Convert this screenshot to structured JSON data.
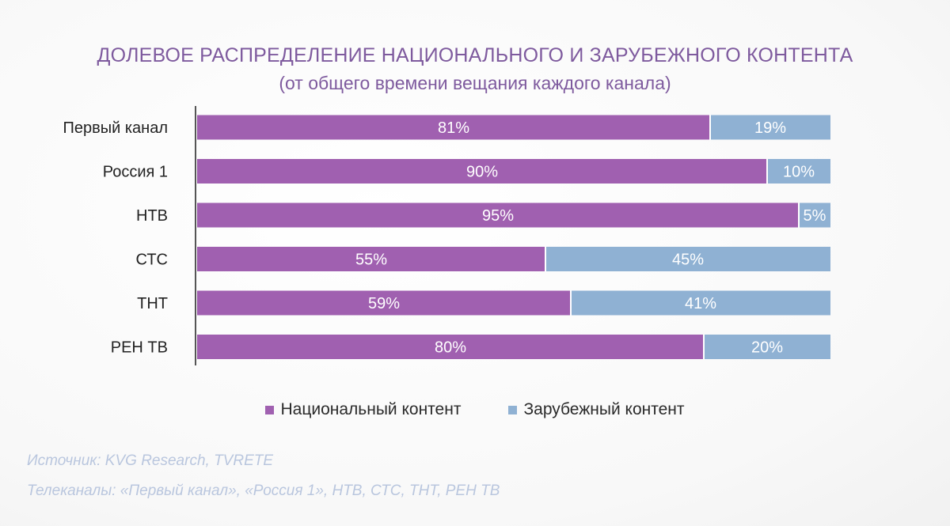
{
  "chart_data": {
    "type": "bar",
    "orientation": "horizontal",
    "stacked": true,
    "title": "ДОЛЕВОЕ РАСПРЕДЕЛЕНИЕ НАЦИОНАЛЬНОГО И ЗАРУБЕЖНОГО КОНТЕНТА",
    "subtitle": "(от общего времени вещания каждого канала)",
    "categories": [
      "Первый канал",
      "Россия 1",
      "НТВ",
      "СТС",
      "ТНТ",
      "РЕН ТВ"
    ],
    "series": [
      {
        "name": "Национальный контент",
        "color": "#a060b0",
        "values": [
          81,
          90,
          95,
          55,
          59,
          80
        ],
        "labels": [
          "81%",
          "90%",
          "95%",
          "55%",
          "59%",
          "80%"
        ]
      },
      {
        "name": "Зарубежный контент",
        "color": "#8fb1d3",
        "values": [
          19,
          10,
          5,
          45,
          41,
          20
        ],
        "labels": [
          "19%",
          "10%",
          "5%",
          "45%",
          "41%",
          "20%"
        ]
      }
    ],
    "xlim": [
      0,
      100
    ],
    "legend": "bottom-center",
    "grid": false
  },
  "footer": {
    "source": "Источник: KVG Research, TVRETE",
    "channels": "Телеканалы: «Первый канал», «Россия 1», НТВ, СТС, ТНТ, РЕН ТВ"
  },
  "colors": {
    "title": "#7e5a9e",
    "axis": "#555555",
    "footer_text": "#b9c6de"
  }
}
